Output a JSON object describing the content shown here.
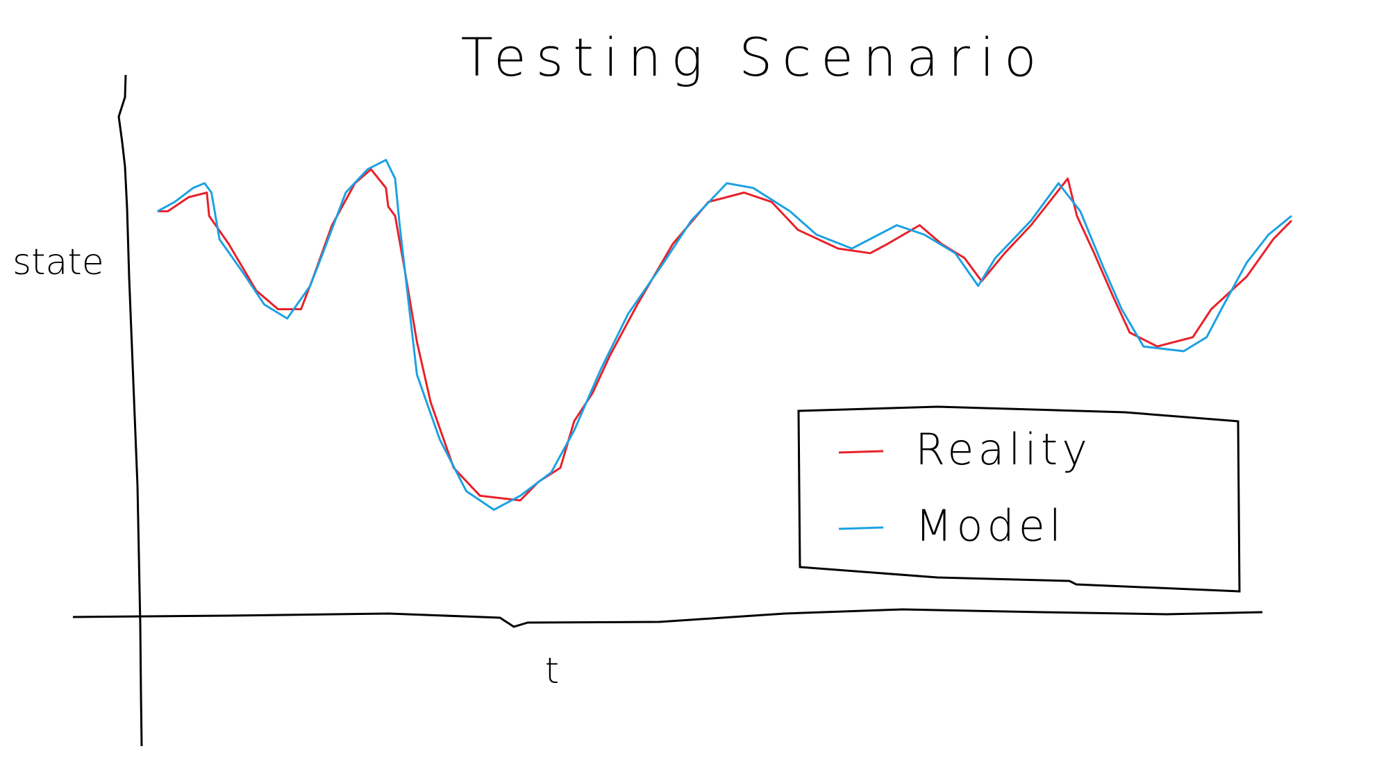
{
  "chart_data": {
    "type": "line",
    "title": "Testing Scenario",
    "y_label": "state",
    "x_label": "t",
    "xlim": [
      0,
      100
    ],
    "ylim": [
      0,
      100
    ],
    "legend": "lower right",
    "series": [
      {
        "name": "Reality",
        "color": "#e8202a",
        "x": [
          1.2,
          2.1,
          3.9,
          5.5,
          5.7,
          7.4,
          9.8,
          11.7,
          13.7,
          14.8,
          16.4,
          18.4,
          19.8,
          21.1,
          21.3,
          21.9,
          22.7,
          23.8,
          25,
          27,
          29.3,
          32.8,
          34.4,
          36.3,
          37.5,
          39.1,
          40.6,
          43,
          46.1,
          49.2,
          52.3,
          54.7,
          57,
          60.5,
          63.3,
          64.8,
          67.6,
          69.5,
          71.5,
          73,
          75,
          77.3,
          80.5,
          81.3,
          82.8,
          84.4,
          85.9,
          88.3,
          91.4,
          93,
          96.1,
          98.4,
          100
        ],
        "values": [
          87,
          87,
          90,
          91,
          86,
          80,
          70,
          66,
          66,
          73,
          84,
          93,
          96,
          92,
          88,
          86,
          75,
          59,
          46,
          32,
          26,
          25,
          29,
          32,
          42,
          48,
          56,
          67,
          80,
          89,
          91,
          89,
          83,
          79,
          78,
          80,
          84,
          80,
          77,
          72,
          78,
          84,
          94,
          86,
          78,
          69,
          61,
          58,
          60,
          66,
          73,
          81,
          85
        ]
      },
      {
        "name": "Model",
        "color": "#1ba1e2",
        "x": [
          1.2,
          2.7,
          4.3,
          5.3,
          5.9,
          6.6,
          8.6,
          10.5,
          12.5,
          14.5,
          15.6,
          17.6,
          19.5,
          21.1,
          21.9,
          22.3,
          23,
          23.8,
          25.8,
          28.1,
          30.5,
          32.8,
          35.5,
          37.5,
          39.8,
          42.2,
          45.3,
          47.7,
          50.8,
          53.1,
          56.3,
          58.6,
          61.7,
          65.6,
          68,
          70.7,
          72.7,
          74.2,
          77.3,
          79.7,
          81.6,
          83.6,
          85.2,
          87.1,
          90.6,
          92.6,
          94.1,
          96.1,
          98,
          100
        ],
        "values": [
          87,
          89,
          92,
          93,
          91,
          81,
          74,
          67,
          64,
          71,
          78,
          91,
          96,
          98,
          94,
          84,
          69,
          52,
          38,
          27,
          23,
          26,
          31,
          40,
          53,
          65,
          76,
          85,
          93,
          92,
          87,
          82,
          79,
          84,
          82,
          78,
          71,
          77,
          85,
          93,
          87,
          75,
          66,
          58,
          57,
          60,
          67,
          76,
          82,
          86
        ]
      }
    ]
  }
}
